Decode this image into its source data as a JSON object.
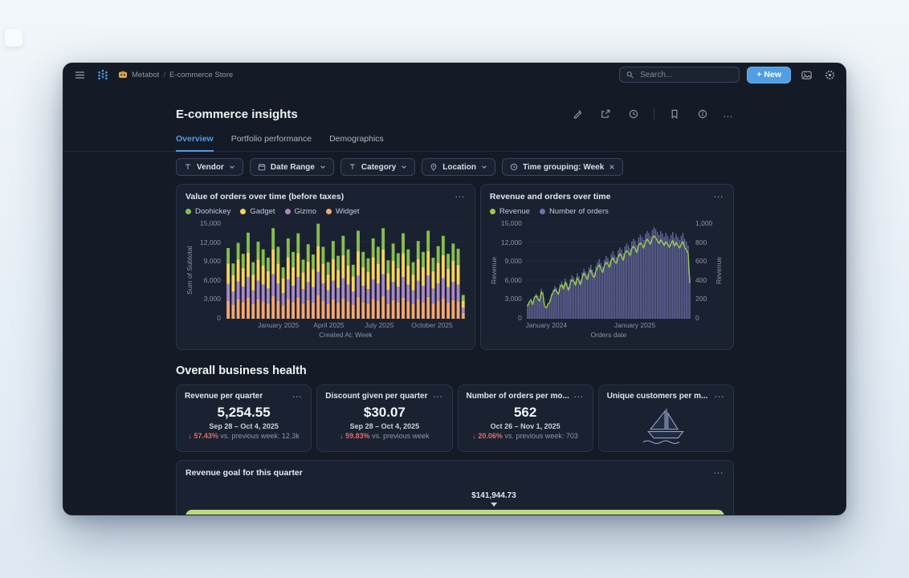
{
  "topbar": {
    "breadcrumb_root": "Metabot",
    "breadcrumb_sep": "/",
    "breadcrumb_current": "E-commerce Store",
    "search_placeholder": "Search...",
    "new_button_label": "+ New"
  },
  "header": {
    "title": "E-commerce insights"
  },
  "tabs": {
    "overview": "Overview",
    "portfolio": "Portfolio performance",
    "demographics": "Demographics"
  },
  "filters": {
    "vendor": "Vendor",
    "date_range": "Date Range",
    "category": "Category",
    "location": "Location",
    "time_grouping": "Time grouping: Week"
  },
  "section": {
    "title": "Overall business health"
  },
  "icons": {
    "ellipsis": "…"
  },
  "colors": {
    "accent_blue": "#509ee3",
    "negative_red": "#e06c6c",
    "window_bg": "#151b26",
    "card_bg": "#1a2231"
  },
  "kpis": [
    {
      "title": "Revenue per quarter",
      "value": "5,254.55",
      "period": "Sep 28 – Oct 4, 2025",
      "delta_arrow": "↓",
      "delta_value": "57.43%",
      "delta_rest": "vs. previous week: 12.3k"
    },
    {
      "title": "Discount given per quarter",
      "value": "$30.07",
      "period": "Sep 28 – Oct 4, 2025",
      "delta_arrow": "↓",
      "delta_value": "59.83%",
      "delta_rest": "vs. previous week"
    },
    {
      "title": "Number of orders per mo...",
      "value": "562",
      "period": "Oct 26 – Nov 1, 2025",
      "delta_arrow": "↓",
      "delta_value": "20.06%",
      "delta_rest": "vs. previous week: 703"
    },
    {
      "title": "Unique customers per m..."
    }
  ],
  "chart_data": [
    {
      "type": "bar",
      "stacked": true,
      "title": "Value of orders over time (before taxes)",
      "xlabel": "Created At: Week",
      "ylabel": "Sum of Subtotal",
      "ylim": [
        0,
        15000
      ],
      "y_ticks": [
        0,
        3000,
        6000,
        9000,
        12000,
        15000
      ],
      "x_ticks": [
        {
          "label": "January 2025",
          "pos": 0.22
        },
        {
          "label": "April 2025",
          "pos": 0.43
        },
        {
          "label": "July 2025",
          "pos": 0.64
        },
        {
          "label": "October 2025",
          "pos": 0.86
        }
      ],
      "legend_position": "top",
      "grid": true,
      "series": [
        {
          "name": "Doohickey",
          "color": "#88BF4D",
          "values": [
            2400,
            1800,
            2600,
            2200,
            3100,
            1900,
            2800,
            2500,
            2100,
            3300,
            2600,
            1700,
            2900,
            2400,
            3100,
            2000,
            2700,
            2300,
            3500,
            2600,
            1900,
            2800,
            2200,
            3000,
            2500,
            1800,
            3200,
            2400,
            2100,
            2900,
            2600,
            3300,
            2000,
            2700,
            2300,
            3100,
            2500,
            1900,
            2800,
            2400,
            3200,
            2100,
            2600,
            3000,
            2300,
            2700,
            2500,
            900
          ]
        },
        {
          "name": "Gadget",
          "color": "#F9D45C",
          "values": [
            3200,
            2600,
            3400,
            2900,
            3800,
            2500,
            3300,
            3000,
            2700,
            3900,
            3100,
            2300,
            3500,
            2900,
            3700,
            2600,
            3200,
            2800,
            4000,
            3100,
            2500,
            3400,
            2800,
            3600,
            3000,
            2400,
            3800,
            2900,
            2700,
            3500,
            3100,
            3900,
            2600,
            3300,
            2900,
            3700,
            3000,
            2500,
            3400,
            2900,
            3800,
            2700,
            3200,
            3600,
            2900,
            3300,
            3100,
            1100
          ]
        },
        {
          "name": "Gizmo",
          "color": "#A989C5",
          "values": [
            2600,
            2000,
            2800,
            2400,
            3200,
            2100,
            2900,
            2600,
            2300,
            3400,
            2700,
            1900,
            3000,
            2500,
            3200,
            2200,
            2800,
            2400,
            3600,
            2700,
            2100,
            2900,
            2300,
            3100,
            2600,
            2000,
            3300,
            2500,
            2200,
            3000,
            2700,
            3400,
            2200,
            2800,
            2400,
            3200,
            2600,
            2100,
            2900,
            2500,
            3300,
            2300,
            2700,
            3100,
            2400,
            2800,
            2600,
            800
          ]
        },
        {
          "name": "Widget",
          "color": "#F2A86F",
          "values": [
            2800,
            2200,
            3000,
            2600,
            3300,
            2300,
            3000,
            2700,
            2400,
            3500,
            2800,
            2100,
            3100,
            2600,
            3300,
            2400,
            2900,
            2500,
            3700,
            2800,
            2300,
            3000,
            2500,
            3200,
            2700,
            2200,
            3400,
            2600,
            2400,
            3100,
            2800,
            3500,
            2300,
            2900,
            2600,
            3300,
            2700,
            2300,
            3000,
            2600,
            3400,
            2400,
            2800,
            3200,
            2500,
            2900,
            2700,
            900
          ]
        }
      ]
    },
    {
      "type": "line",
      "combo": true,
      "title": "Revenue and orders over time",
      "xlabel": "Orders date",
      "left_axis": {
        "label": "Revenue",
        "ylim": [
          0,
          15000
        ],
        "ticks": [
          0,
          3000,
          6000,
          9000,
          12000,
          15000
        ]
      },
      "right_axis": {
        "label": "Revenue",
        "ylim": [
          0,
          1000
        ],
        "ticks": [
          0,
          200,
          400,
          600,
          800,
          1000
        ]
      },
      "x_ticks": [
        {
          "label": "January 2024",
          "pos": 0.12
        },
        {
          "label": "January 2025",
          "pos": 0.66
        }
      ],
      "grid": true,
      "series": [
        {
          "name": "Revenue",
          "kind": "line",
          "axis": "left",
          "color": "#9CC94C",
          "values": [
            2000,
            2600,
            2900,
            2200,
            3300,
            3600,
            3100,
            2700,
            4200,
            3700,
            1900,
            1700,
            2300,
            2600,
            3600,
            4100,
            4600,
            4200,
            3800,
            4900,
            5300,
            4600,
            5700,
            5100,
            4400,
            5600,
            6100,
            5800,
            5200,
            6400,
            5900,
            5300,
            6500,
            7100,
            6600,
            6100,
            7200,
            7600,
            6800,
            6400,
            7400,
            8000,
            8400,
            7700,
            7200,
            8300,
            8800,
            8500,
            8000,
            9100,
            9500,
            8900,
            8600,
            9600,
            10100,
            9700,
            9100,
            10200,
            10600,
            10300,
            9800,
            10900,
            11300,
            10900,
            10300,
            11400,
            11800,
            11500,
            11000,
            11900,
            12400,
            12000,
            11600,
            12500,
            12900,
            12600,
            12100,
            11700,
            12300,
            11900,
            11400,
            12000,
            11600,
            11100,
            11700,
            12200,
            11300,
            11900,
            11400,
            11000,
            11600,
            12000,
            11100,
            10700,
            10200,
            5600
          ]
        },
        {
          "name": "Number of orders",
          "kind": "bar",
          "axis": "right",
          "color": "#7172AD",
          "values": [
            150,
            180,
            210,
            170,
            230,
            260,
            240,
            200,
            310,
            280,
            140,
            120,
            160,
            190,
            260,
            300,
            340,
            320,
            280,
            360,
            390,
            350,
            420,
            380,
            330,
            410,
            450,
            430,
            390,
            470,
            440,
            400,
            480,
            520,
            490,
            460,
            530,
            560,
            510,
            480,
            550,
            590,
            620,
            580,
            540,
            610,
            650,
            630,
            600,
            670,
            700,
            660,
            640,
            710,
            740,
            720,
            680,
            750,
            780,
            760,
            730,
            800,
            830,
            810,
            770,
            840,
            870,
            850,
            820,
            880,
            910,
            890,
            860,
            920,
            950,
            930,
            900,
            870,
            910,
            880,
            850,
            890,
            860,
            830,
            870,
            900,
            840,
            880,
            850,
            820,
            860,
            890,
            830,
            800,
            760,
            420
          ]
        }
      ]
    },
    {
      "type": "progress",
      "title": "Revenue goal for this quarter",
      "marker_label": "$141,944.73",
      "marker_position_pct": 57,
      "bar_color": "#bcd883"
    }
  ]
}
